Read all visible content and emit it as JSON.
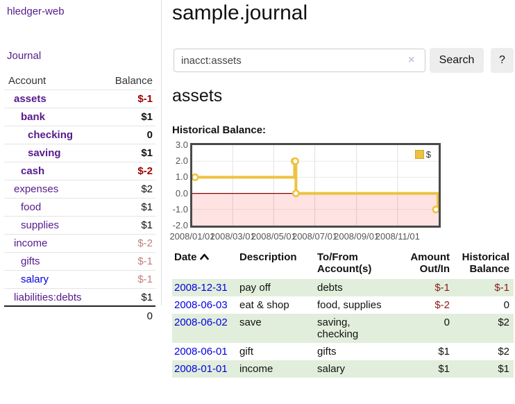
{
  "app": {
    "brand": "hledger-web",
    "nav_journal": "Journal"
  },
  "sidebar": {
    "accounts_header": {
      "account": "Account",
      "balance": "Balance"
    },
    "accounts": [
      {
        "name": "assets",
        "balance": "$-1",
        "depth": 1,
        "bold": true
      },
      {
        "name": "bank",
        "balance": "$1",
        "depth": 2,
        "bold": true
      },
      {
        "name": "checking",
        "balance": "0",
        "depth": 3,
        "bold": true
      },
      {
        "name": "saving",
        "balance": "$1",
        "depth": 3,
        "bold": true
      },
      {
        "name": "cash",
        "balance": "$-2",
        "depth": 2,
        "bold": true
      },
      {
        "name": "expenses",
        "balance": "$2",
        "depth": 1,
        "bold": false
      },
      {
        "name": "food",
        "balance": "$1",
        "depth": 2,
        "bold": false
      },
      {
        "name": "supplies",
        "balance": "$1",
        "depth": 2,
        "bold": false
      },
      {
        "name": "income",
        "balance": "$-2",
        "depth": 1,
        "bold": false
      },
      {
        "name": "gifts",
        "balance": "$-1",
        "depth": 2,
        "bold": false
      },
      {
        "name": "salary",
        "balance": "$-1",
        "depth": 2,
        "bold": false
      },
      {
        "name": "liabilities:debts",
        "balance": "$1",
        "depth": 1,
        "bold": false
      }
    ],
    "total": "0"
  },
  "main": {
    "title": "sample.journal",
    "search": {
      "value": "inacct:assets",
      "clear_icon": "×",
      "button_label": "Search",
      "help_label": "?"
    },
    "account_heading": "assets",
    "chart_label": "Historical Balance:"
  },
  "chart_data": {
    "type": "line",
    "title": "Historical Balance",
    "step": true,
    "grid": true,
    "legend": "$",
    "legend_position": "top-right",
    "line_color": "#edc240",
    "negative_fill_color": "#ff0000",
    "zero_line_color": "#8b0000",
    "x_range": [
      "2008/01/01",
      "2009/01/01"
    ],
    "y_range": [
      -2,
      3
    ],
    "x_ticks": [
      "2008/01/01",
      "2008/03/01",
      "2008/05/01",
      "2008/07/01",
      "2008/09/01",
      "2008/11/01"
    ],
    "y_ticks": [
      "3.0",
      "2.0",
      "1.0",
      "0.0",
      "-1.0",
      "-2.0"
    ],
    "series": [
      {
        "name": "$",
        "points": [
          [
            "2008/01/01",
            1
          ],
          [
            "2008/06/01",
            2
          ],
          [
            "2008/06/02",
            2
          ],
          [
            "2008/06/03",
            0
          ],
          [
            "2008/12/31",
            -1
          ]
        ]
      }
    ]
  },
  "register": {
    "columns": [
      "Date",
      "Description",
      "To/From Account(s)",
      "Amount Out/In",
      "Historical Balance"
    ],
    "rows": [
      {
        "date": "2008-12-31",
        "description": "pay off",
        "accounts": "debts",
        "amount": "$-1",
        "balance": "$-1"
      },
      {
        "date": "2008-06-03",
        "description": "eat & shop",
        "accounts": "food, supplies",
        "amount": "$-2",
        "balance": "0"
      },
      {
        "date": "2008-06-02",
        "description": "save",
        "accounts": "saving, checking",
        "amount": "0",
        "balance": "$2"
      },
      {
        "date": "2008-06-01",
        "description": "gift",
        "accounts": "gifts",
        "amount": "$1",
        "balance": "$2"
      },
      {
        "date": "2008-01-01",
        "description": "income",
        "accounts": "salary",
        "amount": "$1",
        "balance": "$1"
      }
    ]
  }
}
